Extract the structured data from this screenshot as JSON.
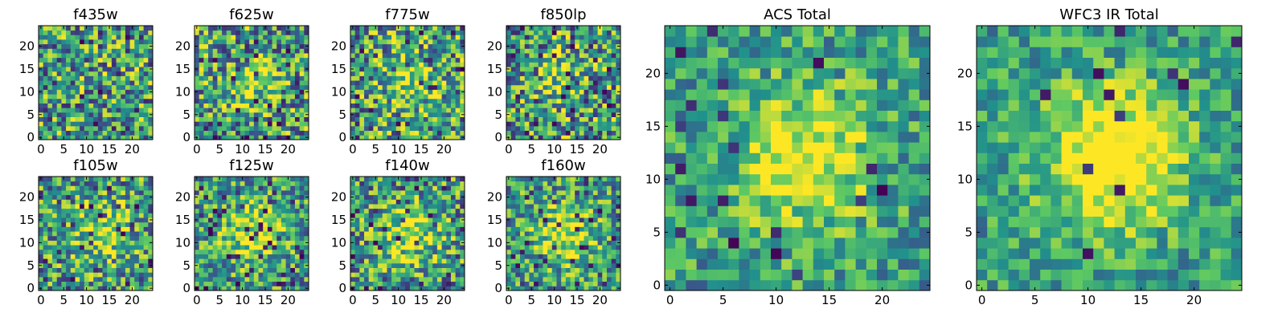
{
  "figure_title": "",
  "colormap": {
    "name": "viridis",
    "stops": [
      "#440154",
      "#3b528b",
      "#21918c",
      "#5ec962",
      "#fde725"
    ]
  },
  "chart_data": [
    {
      "type": "heatmap",
      "title": "f435w",
      "grid_size": [
        25,
        25
      ],
      "xlim": [
        0,
        24
      ],
      "ylim": [
        0,
        24
      ],
      "xticks": [
        0,
        5,
        10,
        15,
        20
      ],
      "yticks": [
        0,
        5,
        10,
        15,
        20
      ],
      "seed": 11,
      "blob_strength": 0.05,
      "noise_level": 0.55,
      "dark_pixel_rate": 0.01,
      "values": []
    },
    {
      "type": "heatmap",
      "title": "f625w",
      "grid_size": [
        25,
        25
      ],
      "xlim": [
        0,
        24
      ],
      "ylim": [
        0,
        24
      ],
      "xticks": [
        0,
        5,
        10,
        15,
        20
      ],
      "yticks": [
        0,
        5,
        10,
        15,
        20
      ],
      "seed": 22,
      "blob_strength": 0.25,
      "noise_level": 0.55,
      "dark_pixel_rate": 0.07,
      "values": []
    },
    {
      "type": "heatmap",
      "title": "f775w",
      "grid_size": [
        25,
        25
      ],
      "xlim": [
        0,
        24
      ],
      "ylim": [
        0,
        24
      ],
      "xticks": [
        0,
        5,
        10,
        15,
        20
      ],
      "yticks": [
        0,
        5,
        10,
        15,
        20
      ],
      "seed": 33,
      "blob_strength": 0.3,
      "noise_level": 0.55,
      "dark_pixel_rate": 0.04,
      "values": []
    },
    {
      "type": "heatmap",
      "title": "f850lp",
      "grid_size": [
        25,
        25
      ],
      "xlim": [
        0,
        24
      ],
      "ylim": [
        0,
        24
      ],
      "xticks": [
        0,
        5,
        10,
        15,
        20
      ],
      "yticks": [
        0,
        5,
        10,
        15,
        20
      ],
      "seed": 44,
      "blob_strength": 0.2,
      "noise_level": 0.55,
      "dark_pixel_rate": 0.08,
      "values": []
    },
    {
      "type": "heatmap",
      "title": "f105w",
      "grid_size": [
        25,
        25
      ],
      "xlim": [
        0,
        24
      ],
      "ylim": [
        0,
        24
      ],
      "xticks": [
        0,
        5,
        10,
        15,
        20
      ],
      "yticks": [
        0,
        5,
        10,
        15,
        20
      ],
      "seed": 55,
      "blob_strength": 0.3,
      "noise_level": 0.5,
      "dark_pixel_rate": 0.05,
      "values": []
    },
    {
      "type": "heatmap",
      "title": "f125w",
      "grid_size": [
        25,
        25
      ],
      "xlim": [
        0,
        24
      ],
      "ylim": [
        0,
        24
      ],
      "xticks": [
        0,
        5,
        10,
        15,
        20
      ],
      "yticks": [
        0,
        5,
        10,
        15,
        20
      ],
      "seed": 66,
      "blob_strength": 0.4,
      "noise_level": 0.45,
      "dark_pixel_rate": 0.05,
      "values": []
    },
    {
      "type": "heatmap",
      "title": "f140w",
      "grid_size": [
        25,
        25
      ],
      "xlim": [
        0,
        24
      ],
      "ylim": [
        0,
        24
      ],
      "xticks": [
        0,
        5,
        10,
        15,
        20
      ],
      "yticks": [
        0,
        5,
        10,
        15,
        20
      ],
      "seed": 77,
      "blob_strength": 0.35,
      "noise_level": 0.5,
      "dark_pixel_rate": 0.07,
      "values": []
    },
    {
      "type": "heatmap",
      "title": "f160w",
      "grid_size": [
        25,
        25
      ],
      "xlim": [
        0,
        24
      ],
      "ylim": [
        0,
        24
      ],
      "xticks": [
        0,
        5,
        10,
        15,
        20
      ],
      "yticks": [
        0,
        5,
        10,
        15,
        20
      ],
      "seed": 88,
      "blob_strength": 0.4,
      "noise_level": 0.45,
      "dark_pixel_rate": 0.06,
      "values": []
    },
    {
      "type": "heatmap",
      "title": "ACS Total",
      "grid_size": [
        25,
        25
      ],
      "xlim": [
        0,
        24
      ],
      "ylim": [
        0,
        24
      ],
      "xticks": [
        0,
        5,
        10,
        15,
        20
      ],
      "yticks": [
        0,
        5,
        10,
        15,
        20
      ],
      "seed": 99,
      "blob_strength": 0.5,
      "noise_level": 0.35,
      "dark_pixel_rate": 0.03,
      "values": []
    },
    {
      "type": "heatmap",
      "title": "WFC3 IR Total",
      "grid_size": [
        25,
        25
      ],
      "xlim": [
        0,
        24
      ],
      "ylim": [
        0,
        24
      ],
      "xticks": [
        0,
        5,
        10,
        15,
        20
      ],
      "yticks": [
        0,
        5,
        10,
        15,
        20
      ],
      "seed": 111,
      "blob_strength": 0.65,
      "noise_level": 0.3,
      "dark_pixel_rate": 0.02,
      "values": []
    }
  ]
}
